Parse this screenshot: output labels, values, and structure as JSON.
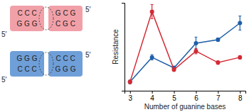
{
  "chart_data": {
    "type": "line",
    "x_label": "Number of guanine bases",
    "y_label": "Resistance",
    "x": [
      3,
      4,
      5,
      6,
      7,
      8
    ],
    "xlim": [
      2.75,
      8.25
    ],
    "xticks": [
      3,
      4,
      5,
      6,
      7,
      8
    ],
    "ylim": [
      0,
      10
    ],
    "yticks": [],
    "tick_labels": "x",
    "series": [
      {
        "color": "#1f5fa8",
        "marker": "circle",
        "values": [
          1.0,
          3.8,
          2.6,
          5.4,
          5.8,
          7.7
        ],
        "errors": [
          0.2,
          0.3,
          0.2,
          0.7,
          0.2,
          0.8
        ]
      },
      {
        "color": "#d42a35",
        "marker": "circle",
        "values": [
          1.0,
          9.0,
          2.4,
          4.5,
          3.2,
          3.8
        ],
        "errors": [
          0.2,
          0.8,
          0.2,
          0.3,
          0.2,
          0.2
        ]
      }
    ]
  },
  "diagram": {
    "strands": [
      {
        "color": "#f2a0a8",
        "rows": [
          [
            "C C C",
            "G C G"
          ],
          [
            "G G G",
            "C G C"
          ]
        ],
        "labels": [
          "5′",
          "5′"
        ]
      },
      {
        "color": "#6f9fd8",
        "rows": [
          [
            "G G G",
            "C C C"
          ],
          [
            "C C C",
            "G G G"
          ]
        ],
        "labels": [
          "5′",
          "5′"
        ]
      }
    ]
  }
}
